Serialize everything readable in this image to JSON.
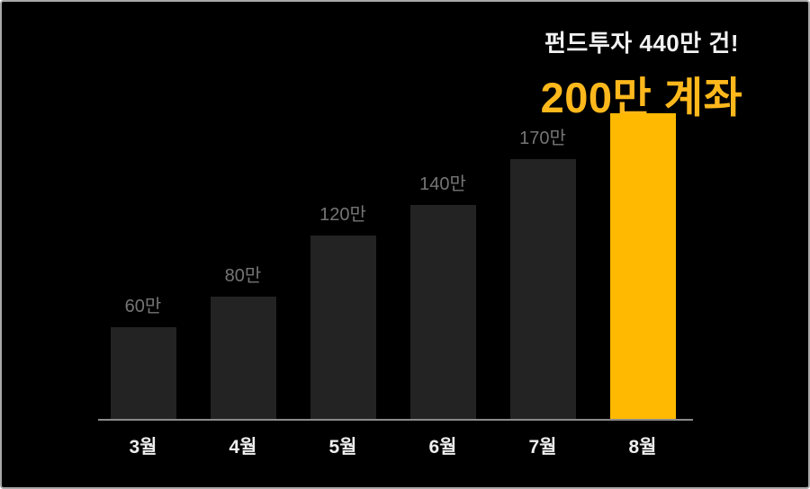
{
  "header": {
    "subtitle": "펀드투자 440만 건!",
    "title": "200만 계좌",
    "title_color": "#ffb81c",
    "subtitle_color": "#f2f2f2"
  },
  "chart_data": {
    "type": "bar",
    "categories": [
      "3월",
      "4월",
      "5월",
      "6월",
      "7월",
      "8월"
    ],
    "values": [
      60,
      80,
      120,
      140,
      170,
      200
    ],
    "value_labels": [
      "60만",
      "80만",
      "120만",
      "140만",
      "170만",
      ""
    ],
    "unit": "만",
    "title": "200만 계좌",
    "subtitle": "펀드투자 440만 건!",
    "xlabel": "",
    "ylabel": "",
    "ylim": [
      0,
      220
    ],
    "grid": false,
    "legend": false,
    "background_color": "#000000",
    "bar_color": "#242324",
    "highlight_index": 5,
    "highlight_color": "#ffb900",
    "value_label_color": "#757575",
    "category_label_color": "#eeeeee",
    "axis_line_color": "#8a8a8a"
  }
}
